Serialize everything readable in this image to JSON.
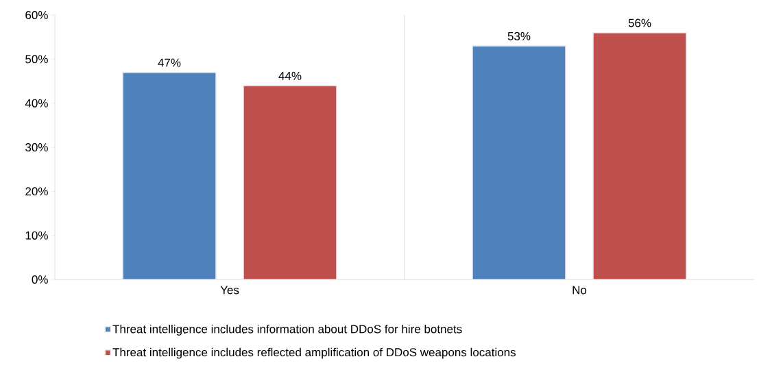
{
  "chart_data": {
    "type": "bar",
    "categories": [
      "Yes",
      "No"
    ],
    "series": [
      {
        "name": "Threat intelligence includes information about DDoS for hire botnets",
        "color": "#4f81bd",
        "values": [
          47,
          53
        ],
        "value_labels": [
          "47%",
          "53%"
        ]
      },
      {
        "name": "Threat intelligence includes reflected amplification of DDoS weapons locations",
        "color": "#c0504d",
        "values": [
          44,
          56
        ],
        "value_labels": [
          "44%",
          "56%"
        ]
      }
    ],
    "ylim": [
      0,
      60
    ],
    "yticks": [
      {
        "value": 0,
        "label": "0%"
      },
      {
        "value": 10,
        "label": "10%"
      },
      {
        "value": 20,
        "label": "20%"
      },
      {
        "value": 30,
        "label": "30%"
      },
      {
        "value": 40,
        "label": "40%"
      },
      {
        "value": 50,
        "label": "50%"
      },
      {
        "value": 60,
        "label": "60%"
      }
    ],
    "grid": "x",
    "legend": "bottom"
  }
}
